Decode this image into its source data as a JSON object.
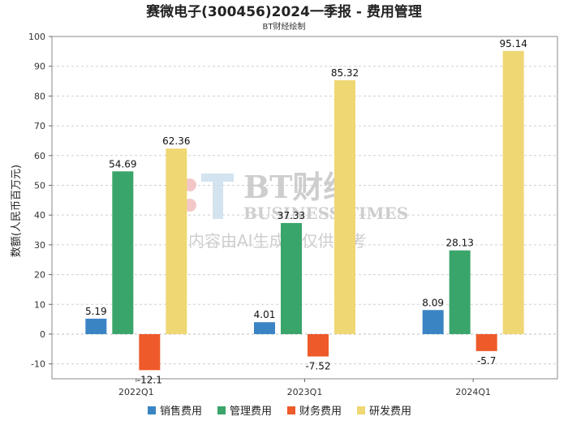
{
  "chart_data": {
    "type": "bar",
    "title": "赛微电子(300456)2024一季报 - 费用管理",
    "subtitle": "BT财经绘制",
    "xlabel": "",
    "ylabel": "数额(人民币百万元)",
    "ylim": [
      -15,
      100
    ],
    "yticks": [
      -10,
      0,
      10,
      20,
      30,
      40,
      50,
      60,
      70,
      80,
      90,
      100
    ],
    "grid": true,
    "legend_position": "bottom",
    "categories": [
      "2022Q1",
      "2023Q1",
      "2024Q1"
    ],
    "series": [
      {
        "name": "销售费用",
        "color": "#3a84c4",
        "values": [
          5.19,
          4.01,
          8.09
        ],
        "labels": [
          "5.19",
          "4.01",
          "8.09"
        ]
      },
      {
        "name": "管理费用",
        "color": "#3aa56a",
        "values": [
          54.69,
          37.33,
          28.13
        ],
        "labels": [
          "54.69",
          "37.33",
          "28.13"
        ]
      },
      {
        "name": "财务费用",
        "color": "#ee5a2a",
        "values": [
          -12.1,
          -7.52,
          -5.7
        ],
        "labels": [
          "-12.1",
          "-7.52",
          "-5.7"
        ]
      },
      {
        "name": "研发费用",
        "color": "#efd773",
        "values": [
          62.36,
          85.32,
          95.14
        ],
        "labels": [
          "62.36",
          "85.32",
          "95.14"
        ]
      }
    ]
  },
  "watermark": {
    "brand": "BT财经",
    "brand_en": "BUSINESS TIMES",
    "notice": "内容由AI生成，仅供参考"
  }
}
